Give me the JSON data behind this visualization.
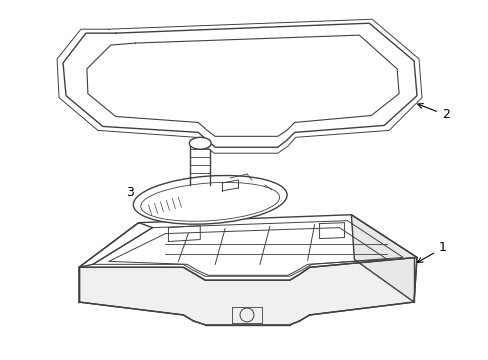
{
  "background_color": "#ffffff",
  "line_color": "#404040",
  "line_width": 1.0,
  "label_color": "#000000",
  "figsize": [
    4.89,
    3.6
  ],
  "dpi": 100
}
